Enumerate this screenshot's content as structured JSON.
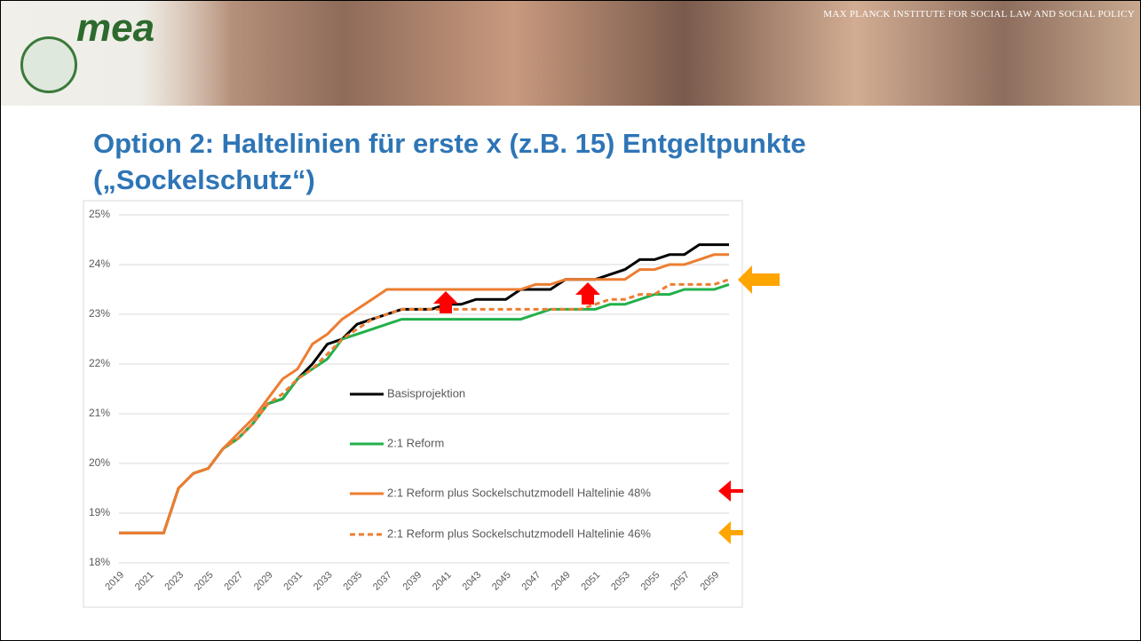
{
  "slide": {
    "logo": "mea",
    "institute": "MAX PLANCK INSTITUTE FOR SOCIAL LAW AND SOCIAL POLICY",
    "title_lines": [
      "Option 2:  Haltelinien für erste x (z.B. 15) Entgeltpunkte",
      "(„Sockelschutz“)"
    ]
  },
  "chart_data": {
    "type": "line",
    "categories": [
      "2019",
      null,
      "2021",
      null,
      "2023",
      null,
      "2025",
      null,
      "2027",
      null,
      "2029",
      null,
      "2031",
      null,
      "2033",
      null,
      "2035",
      null,
      "2037",
      null,
      "2039",
      null,
      "2041",
      null,
      "2043",
      null,
      "2045",
      null,
      "2047",
      null,
      "2049",
      null,
      "2051",
      null,
      "2053",
      null,
      "2055",
      null,
      "2057",
      null,
      "2059",
      null
    ],
    "ylim": [
      18,
      25
    ],
    "yticks": [
      {
        "value": 18,
        "label": "18%"
      },
      {
        "value": 19,
        "label": "19%"
      },
      {
        "value": 20,
        "label": "20%"
      },
      {
        "value": 21,
        "label": "21%"
      },
      {
        "value": 22,
        "label": "22%"
      },
      {
        "value": 23,
        "label": "23%"
      },
      {
        "value": 24,
        "label": "24%"
      },
      {
        "value": 25,
        "label": "25%"
      }
    ],
    "grid": true,
    "series": [
      {
        "name": "Basisprojektion",
        "color": "#000000",
        "dashed": false,
        "values": [
          18.6,
          18.6,
          18.6,
          18.6,
          19.5,
          19.8,
          19.9,
          20.3,
          20.5,
          20.8,
          21.2,
          21.3,
          21.7,
          22.0,
          22.4,
          22.5,
          22.8,
          22.9,
          23.0,
          23.1,
          23.1,
          23.1,
          23.2,
          23.2,
          23.3,
          23.3,
          23.3,
          23.5,
          23.5,
          23.5,
          23.7,
          23.7,
          23.7,
          23.8,
          23.9,
          24.1,
          24.1,
          24.2,
          24.2,
          24.4,
          24.4,
          24.4
        ]
      },
      {
        "name": "2:1 Reform",
        "color": "#22b04b",
        "dashed": false,
        "values": [
          18.6,
          18.6,
          18.6,
          18.6,
          19.5,
          19.8,
          19.9,
          20.3,
          20.5,
          20.8,
          21.2,
          21.3,
          21.7,
          21.9,
          22.1,
          22.5,
          22.6,
          22.7,
          22.8,
          22.9,
          22.9,
          22.9,
          22.9,
          22.9,
          22.9,
          22.9,
          22.9,
          22.9,
          23.0,
          23.1,
          23.1,
          23.1,
          23.1,
          23.2,
          23.2,
          23.3,
          23.4,
          23.4,
          23.5,
          23.5,
          23.5,
          23.6
        ]
      },
      {
        "name": "2:1 Reform plus Sockelschutzmodell Haltelinie 48%",
        "color": "#ed7d31",
        "dashed": false,
        "values": [
          18.6,
          18.6,
          18.6,
          18.6,
          19.5,
          19.8,
          19.9,
          20.3,
          20.6,
          20.9,
          21.3,
          21.7,
          21.9,
          22.4,
          22.6,
          22.9,
          23.1,
          23.3,
          23.5,
          23.5,
          23.5,
          23.5,
          23.5,
          23.5,
          23.5,
          23.5,
          23.5,
          23.5,
          23.6,
          23.6,
          23.7,
          23.7,
          23.7,
          23.7,
          23.7,
          23.9,
          23.9,
          24.0,
          24.0,
          24.1,
          24.2,
          24.2
        ]
      },
      {
        "name": "2:1 Reform plus Sockelschutzmodell Haltelinie 46%",
        "color": "#ed7d31",
        "dashed": true,
        "values": [
          18.6,
          18.6,
          18.6,
          18.6,
          19.5,
          19.8,
          19.9,
          20.3,
          20.5,
          20.8,
          21.2,
          21.4,
          21.7,
          21.9,
          22.2,
          22.5,
          22.7,
          22.9,
          23.0,
          23.1,
          23.1,
          23.1,
          23.1,
          23.1,
          23.1,
          23.1,
          23.1,
          23.1,
          23.1,
          23.1,
          23.1,
          23.1,
          23.2,
          23.3,
          23.3,
          23.4,
          23.4,
          23.6,
          23.6,
          23.6,
          23.6,
          23.7
        ]
      }
    ]
  }
}
